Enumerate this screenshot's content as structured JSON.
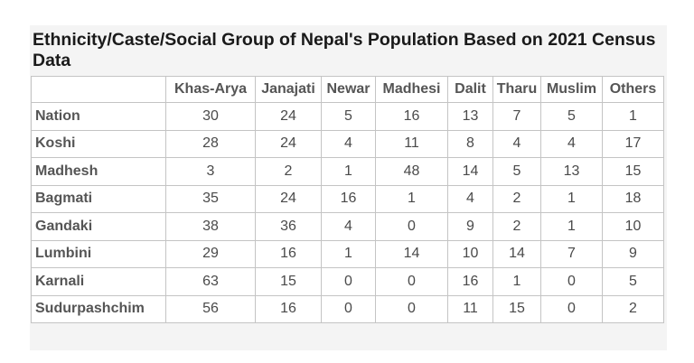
{
  "title": "Ethnicity/Caste/Social Group of Nepal's Population Based on 2021 Census Data",
  "table": {
    "corner": "",
    "columns": [
      "Khas-Arya",
      "Janajati",
      "Newar",
      "Madhesi",
      "Dalit",
      "Tharu",
      "Muslim",
      "Others"
    ],
    "rows": [
      {
        "name": "Nation",
        "values": [
          "30",
          "24",
          "5",
          "16",
          "13",
          "7",
          "5",
          "1"
        ]
      },
      {
        "name": "Koshi",
        "values": [
          "28",
          "24",
          "4",
          "11",
          "8",
          "4",
          "4",
          "17"
        ]
      },
      {
        "name": "Madhesh",
        "values": [
          "3",
          "2",
          "1",
          "48",
          "14",
          "5",
          "13",
          "15"
        ]
      },
      {
        "name": "Bagmati",
        "values": [
          "35",
          "24",
          "16",
          "1",
          "4",
          "2",
          "1",
          "18"
        ]
      },
      {
        "name": "Gandaki",
        "values": [
          "38",
          "36",
          "4",
          "0",
          "9",
          "2",
          "1",
          "10"
        ]
      },
      {
        "name": "Lumbini",
        "values": [
          "29",
          "16",
          "1",
          "14",
          "10",
          "14",
          "7",
          "9"
        ]
      },
      {
        "name": "Karnali",
        "values": [
          "63",
          "15",
          "0",
          "0",
          "16",
          "1",
          "0",
          "5"
        ]
      },
      {
        "name": "Sudurpashchim",
        "values": [
          "56",
          "16",
          "0",
          "0",
          "11",
          "15",
          "0",
          "2"
        ]
      }
    ]
  }
}
